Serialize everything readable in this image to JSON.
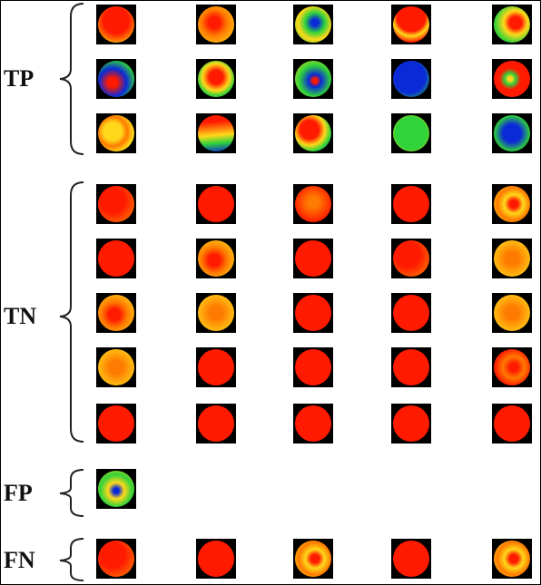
{
  "groups": [
    {
      "label": "TP",
      "rows": [
        [
          "red-center-yellow-rim",
          "yellow-orange-swirl",
          "green-blue-swirl",
          "red-yellow-arc",
          "green-red-swirl"
        ],
        [
          "blue-red-mix",
          "orange-green-arc",
          "green-blue-core",
          "blue-green",
          "red-green-core"
        ],
        [
          "yellow-green",
          "yellow-blue-bottom",
          "red-blue-swirl",
          "green",
          "green-blue-center"
        ]
      ]
    },
    {
      "label": "TN",
      "rows": [
        [
          "red-orange",
          "red",
          "orange-red",
          "red",
          "orange-yellow-swirl"
        ],
        [
          "red",
          "orange-yellow-arc",
          "red",
          "red-orange",
          "orange-yellow"
        ],
        [
          "orange-yellow-arc",
          "orange-yellow",
          "red",
          "red",
          "orange-yellow"
        ],
        [
          "orange-yellow",
          "red",
          "red",
          "red",
          "red-orange-swirl"
        ],
        [
          "red",
          "red",
          "red",
          "red",
          "red"
        ]
      ]
    },
    {
      "label": "FP",
      "rows": [
        [
          "green-yellow-swirl"
        ]
      ]
    },
    {
      "label": "FN",
      "rows": [
        [
          "red-orange",
          "red",
          "orange-yellow-swirl",
          "red",
          "orange-yellow-swirl"
        ]
      ]
    }
  ],
  "colors": {
    "red": "#ff1a00",
    "orange": "#ff7a00",
    "yellow": "#ffd81a",
    "green": "#2fd33a",
    "blue": "#0a2ad8"
  }
}
